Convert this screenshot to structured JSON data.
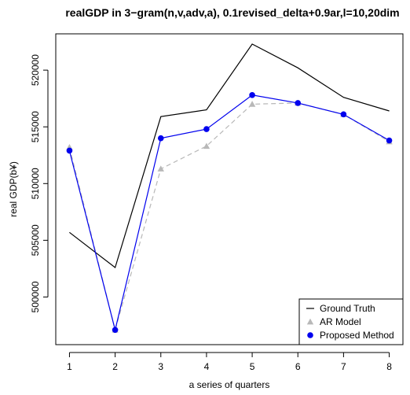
{
  "chart_data": {
    "type": "line",
    "title": "realGDP in 3−gram(n,v,adv,a), 0.1revised_delta+0.9ar,l=10,20dim",
    "xlabel": "a series of quarters",
    "ylabel": "real GDP(b¥)",
    "x": [
      1,
      2,
      3,
      4,
      5,
      6,
      7,
      8
    ],
    "xticks": [
      "1",
      "2",
      "3",
      "4",
      "5",
      "6",
      "7",
      "8"
    ],
    "yticks": [
      500000,
      505000,
      510000,
      515000,
      520000
    ],
    "ytick_labels": [
      "500000",
      "505000",
      "510000",
      "515000",
      "520000"
    ],
    "xlim": [
      0.7,
      8.3
    ],
    "ylim": [
      495800,
      523200
    ],
    "grid": false,
    "legend_position": "bottom-right",
    "series": [
      {
        "name": "Ground Truth",
        "values": [
          505700,
          502600,
          515900,
          516500,
          522300,
          520200,
          517600,
          516400
        ],
        "color": "#000000",
        "marker": "none",
        "line": "solid"
      },
      {
        "name": "AR Model",
        "values": [
          513200,
          497100,
          511300,
          513300,
          517000,
          517100,
          516100,
          513700
        ],
        "color": "#b8b8b8",
        "marker": "triangle",
        "line": "dashed"
      },
      {
        "name": "Proposed Method",
        "values": [
          512900,
          497100,
          514000,
          514800,
          517800,
          517100,
          516100,
          513800
        ],
        "color": "#0000ee",
        "marker": "circle",
        "line": "solid"
      }
    ]
  }
}
